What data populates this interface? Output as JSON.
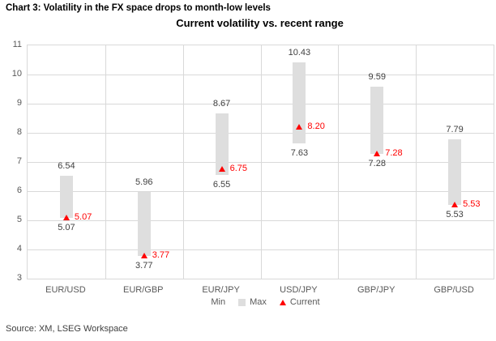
{
  "caption": "Chart 3: Volatility in the FX space drops to month-low levels",
  "source": "Source: XM, LSEG Workspace",
  "chart_data": {
    "type": "bar",
    "subtype": "floating-range-bar-with-marker",
    "title": "Current volatility vs. recent range",
    "categories": [
      "EUR/USD",
      "EUR/GBP",
      "EUR/JPY",
      "USD/JPY",
      "GBP/JPY",
      "GBP/USD"
    ],
    "series": [
      {
        "name": "Min",
        "values": [
          5.07,
          3.77,
          6.55,
          7.63,
          7.28,
          5.53
        ]
      },
      {
        "name": "Max",
        "values": [
          6.54,
          5.96,
          8.67,
          10.43,
          9.59,
          7.79
        ]
      },
      {
        "name": "Current",
        "values": [
          5.07,
          3.77,
          6.75,
          8.2,
          7.28,
          5.53
        ],
        "marker": "triangle-up"
      }
    ],
    "ylim": [
      3,
      11
    ],
    "ytick_step": 1,
    "grid": true,
    "legend_position": "bottom",
    "legend": [
      "Min",
      "Max",
      "Current"
    ],
    "value_decimals": 2,
    "colors": {
      "bar_fill": "#dedede",
      "current": "#ff0000",
      "value_label": "#404040",
      "axis_label": "#595959",
      "gridline": "#d9d9d9"
    }
  }
}
